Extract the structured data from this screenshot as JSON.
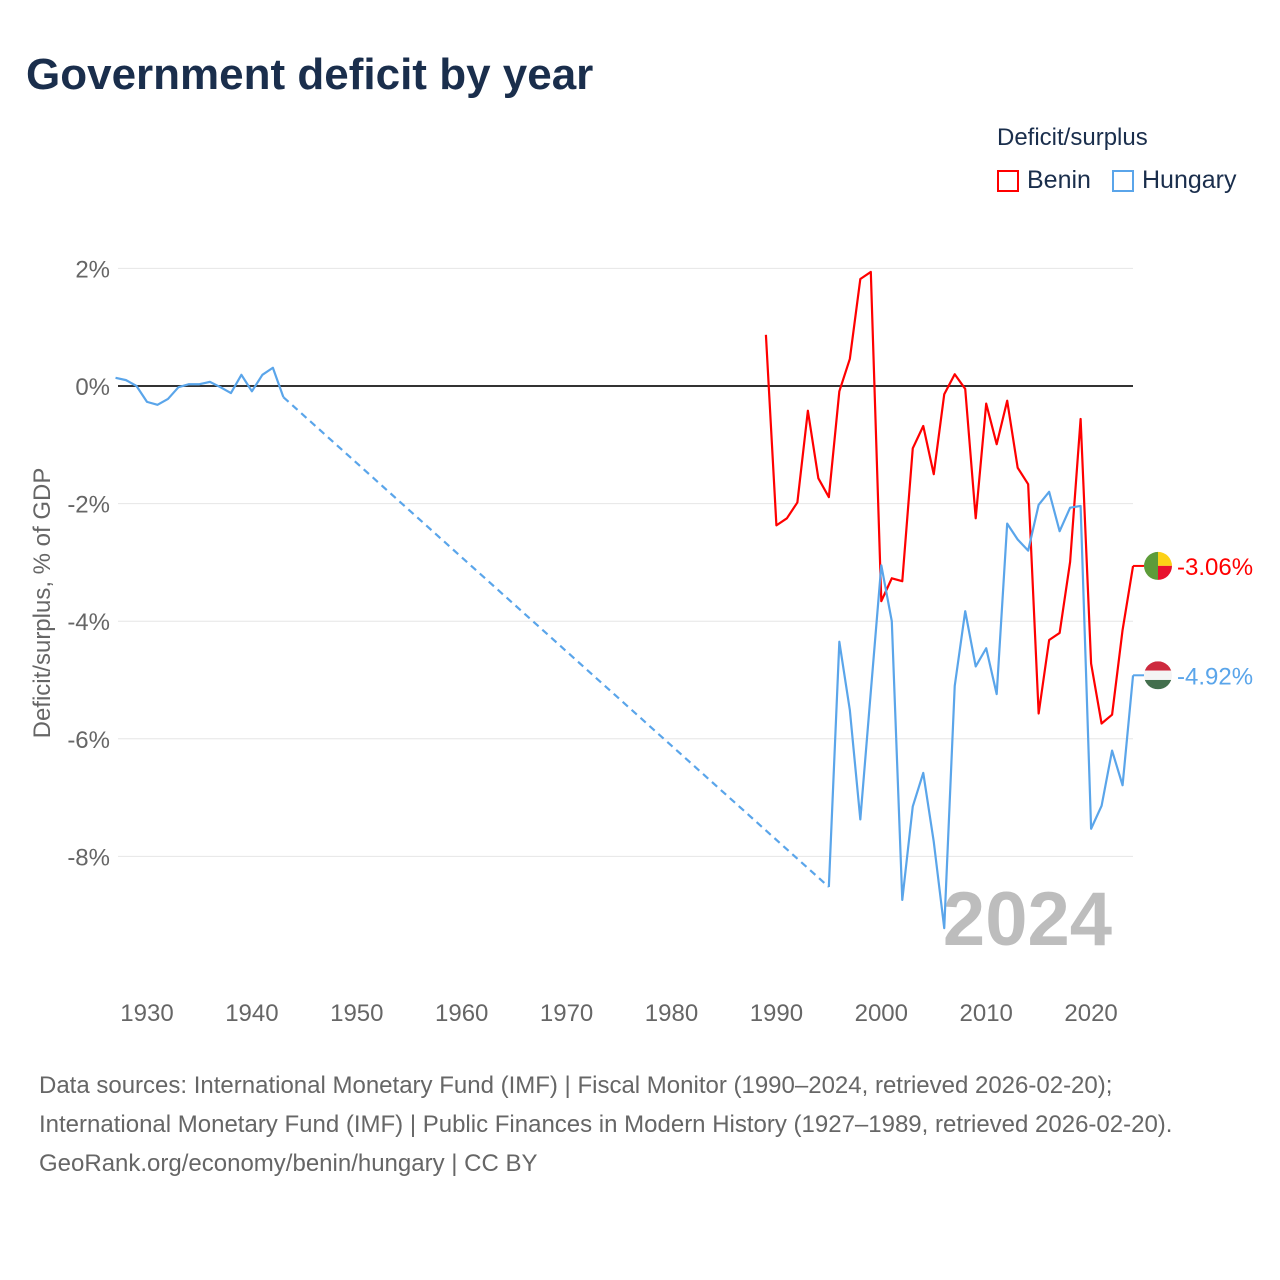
{
  "title": "Government deficit by year",
  "legend": {
    "title": "Deficit/surplus",
    "items": [
      {
        "name": "Benin",
        "color": "#ff0000"
      },
      {
        "name": "Hungary",
        "color": "#5aa5ea"
      }
    ]
  },
  "overlay_year": "2024",
  "footer": {
    "sources": "Data sources: International Monetary Fund (IMF) | Fiscal Monitor (1990–2024, retrieved 2026-02-20); International Monetary Fund (IMF) | Public Finances in Modern History (1927–1989, retrieved 2026-02-20).",
    "credit": "GeoRank.org/economy/benin/hungary | CC BY"
  },
  "chart_data": {
    "type": "line",
    "title": "Government deficit by year",
    "ylabel": "Deficit/surplus, % of GDP",
    "xlabel": "",
    "xlim": [
      1927,
      2024
    ],
    "ylim": [
      -10,
      2.5
    ],
    "xticks": [
      1930,
      1940,
      1950,
      1960,
      1970,
      1980,
      1990,
      2000,
      2010,
      2020
    ],
    "yticks": [
      {
        "v": 2,
        "label": "2%"
      },
      {
        "v": 0,
        "label": "0%"
      },
      {
        "v": -2,
        "label": "-2%"
      },
      {
        "v": -4,
        "label": "-4%"
      },
      {
        "v": -6,
        "label": "-6%"
      },
      {
        "v": -8,
        "label": "-8%"
      }
    ],
    "legend_position": "top-right",
    "series": [
      {
        "name": "Benin",
        "color": "#ff0000",
        "end_label": "-3.06%",
        "x": [
          1989,
          1990,
          1991,
          1992,
          1993,
          1994,
          1995,
          1996,
          1997,
          1998,
          1999,
          2000,
          2001,
          2002,
          2003,
          2004,
          2005,
          2006,
          2007,
          2008,
          2009,
          2010,
          2011,
          2012,
          2013,
          2014,
          2015,
          2016,
          2017,
          2018,
          2019,
          2020,
          2021,
          2022,
          2023,
          2024
        ],
        "y": [
          0.87,
          -2.37,
          -2.25,
          -1.98,
          -0.42,
          -1.57,
          -1.89,
          -0.09,
          0.46,
          1.82,
          1.94,
          -3.66,
          -3.27,
          -3.32,
          -1.06,
          -0.68,
          -1.5,
          -0.14,
          0.2,
          -0.05,
          -2.25,
          -0.3,
          -0.99,
          -0.25,
          -1.39,
          -1.67,
          -5.57,
          -4.32,
          -4.2,
          -2.99,
          -0.56,
          -4.72,
          -5.74,
          -5.59,
          -4.15,
          -3.06
        ]
      },
      {
        "name": "Hungary",
        "color": "#5aa5ea",
        "end_label": "-4.92%",
        "gap": [
          1943,
          1995
        ],
        "x": [
          1927,
          1928,
          1929,
          1930,
          1931,
          1932,
          1933,
          1934,
          1935,
          1936,
          1937,
          1938,
          1939,
          1940,
          1941,
          1942,
          1943,
          1995,
          1996,
          1997,
          1998,
          1999,
          2000,
          2001,
          2002,
          2003,
          2004,
          2005,
          2006,
          2007,
          2008,
          2009,
          2010,
          2011,
          2012,
          2013,
          2014,
          2015,
          2016,
          2017,
          2018,
          2019,
          2020,
          2021,
          2022,
          2023,
          2024
        ],
        "y": [
          0.14,
          0.1,
          0,
          -0.27,
          -0.32,
          -0.22,
          -0.02,
          0.03,
          0.03,
          0.07,
          -0.02,
          -0.12,
          0.19,
          -0.09,
          0.19,
          0.31,
          -0.19,
          -8.52,
          -4.35,
          -5.51,
          -7.37,
          -5.2,
          -3.05,
          -4.0,
          -8.74,
          -7.15,
          -6.58,
          -7.75,
          -9.22,
          -5.1,
          -3.83,
          -4.77,
          -4.46,
          -5.24,
          -2.34,
          -2.61,
          -2.8,
          -2.02,
          -1.8,
          -2.47,
          -2.07,
          -2.04,
          -7.53,
          -7.14,
          -6.2,
          -6.79,
          -4.92
        ]
      }
    ]
  }
}
